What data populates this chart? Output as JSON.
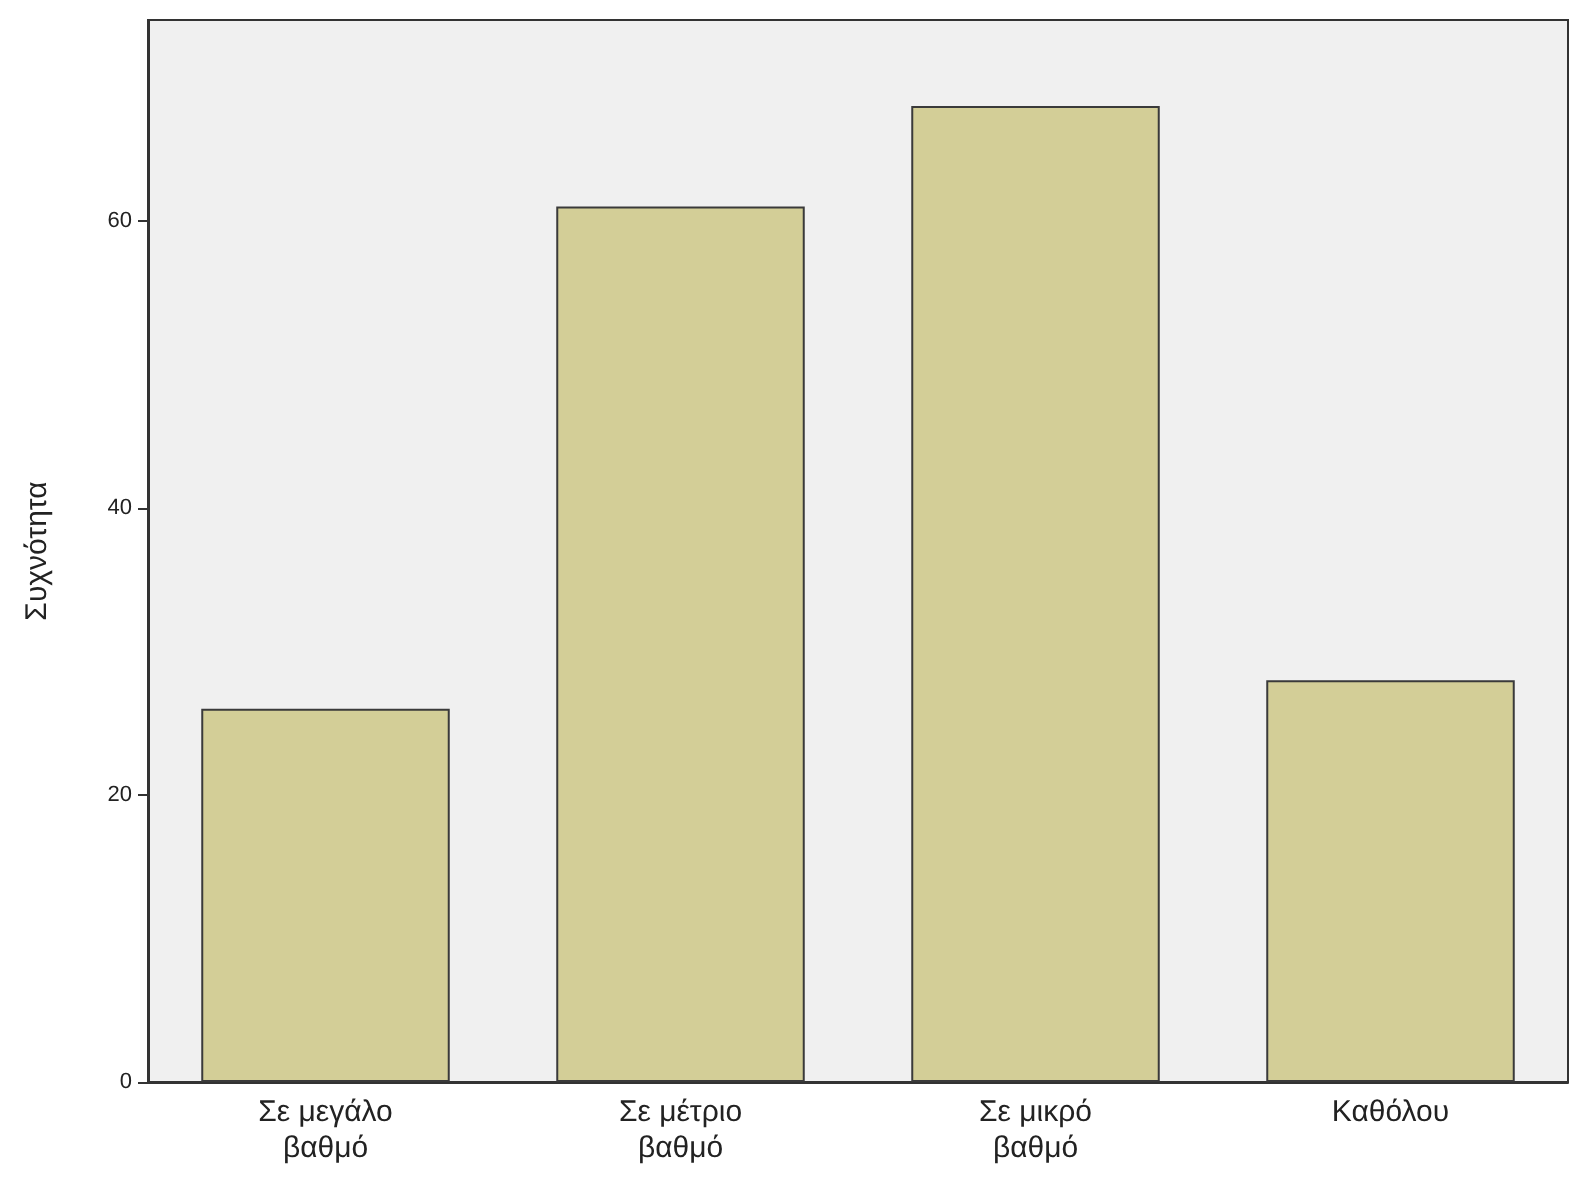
{
  "chart_data": {
    "type": "bar",
    "ylabel": "Συχνότητα",
    "categories": [
      "Σε μεγάλο βαθμό",
      "Σε μέτριο βαθμό",
      "Σε μικρό βαθμό",
      "Καθόλου"
    ],
    "values": [
      26,
      61,
      68,
      28
    ],
    "color": "#d3ce97",
    "ylim": [
      0,
      74
    ],
    "yticks": [
      0,
      20,
      40,
      60
    ],
    "grid": false
  }
}
